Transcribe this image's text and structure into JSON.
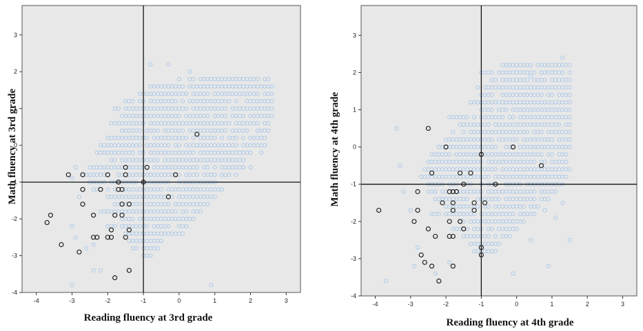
{
  "chart_data": [
    {
      "type": "scatter",
      "title": "",
      "xlabel": "Reading fluency at 3rd grade",
      "ylabel": "Math fluency at 3rd grade",
      "xlim": [
        -4.4,
        3.4
      ],
      "ylim": [
        -4,
        3.8
      ],
      "xticks": [
        -4,
        -3,
        -2,
        -1,
        0,
        1,
        2,
        3
      ],
      "yticks": [
        -4,
        -3,
        -2,
        -1,
        0,
        1,
        2,
        3
      ],
      "reference_lines": {
        "x": -1,
        "y": -1
      },
      "plot_background": "#e8e8e8",
      "grid": false,
      "legend": "none",
      "series": [
        {
          "marker_color": "#a9c7e8",
          "marker": "open-circle",
          "cloud_rows": [
            {
              "y": 1.8,
              "x_from": 0.3,
              "x_to": 2.5
            },
            {
              "y": 1.6,
              "x_from": -0.8,
              "x_to": 2.6
            },
            {
              "y": 1.4,
              "x_from": -1.1,
              "x_to": 2.6
            },
            {
              "y": 1.2,
              "x_from": -1.5,
              "x_to": 2.6
            },
            {
              "y": 1.0,
              "x_from": -1.8,
              "x_to": 2.6
            },
            {
              "y": 0.8,
              "x_from": -1.6,
              "x_to": 2.6
            },
            {
              "y": 0.6,
              "x_from": -1.9,
              "x_to": 2.5
            },
            {
              "y": 0.4,
              "x_from": -1.6,
              "x_to": 2.5
            },
            {
              "y": 0.2,
              "x_from": -2.0,
              "x_to": 2.4
            },
            {
              "y": 0.0,
              "x_from": -2.2,
              "x_to": 2.4
            },
            {
              "y": -0.2,
              "x_from": -2.3,
              "x_to": 2.0
            },
            {
              "y": -0.4,
              "x_from": -2.0,
              "x_to": 1.8
            },
            {
              "y": -0.6,
              "x_from": -2.5,
              "x_to": 1.8
            },
            {
              "y": -0.8,
              "x_from": -2.7,
              "x_to": 1.6
            },
            {
              "y": -1.0,
              "x_from": -2.5,
              "x_to": 1.0
            },
            {
              "y": -1.2,
              "x_from": -2.4,
              "x_to": 1.2
            },
            {
              "y": -1.4,
              "x_from": -2.0,
              "x_to": 1.0
            },
            {
              "y": -1.6,
              "x_from": -1.8,
              "x_to": 0.8
            },
            {
              "y": -1.8,
              "x_from": -2.2,
              "x_to": 0.6
            },
            {
              "y": -2.0,
              "x_from": -1.6,
              "x_to": 0.4
            },
            {
              "y": -2.2,
              "x_from": -2.0,
              "x_to": 0.2
            },
            {
              "y": -2.4,
              "x_from": -1.5,
              "x_to": 0.1
            },
            {
              "y": -2.6,
              "x_from": -1.4,
              "x_to": -0.5
            },
            {
              "y": -2.8,
              "x_from": -1.3,
              "x_to": -0.6
            },
            {
              "y": -3.0,
              "x_from": -1.0,
              "x_to": -0.8
            }
          ],
          "scattered_points": [
            [
              -2.9,
              -0.6
            ],
            [
              -3.0,
              -0.9
            ],
            [
              -2.8,
              -1.4
            ],
            [
              -3.0,
              -2.2
            ],
            [
              -2.9,
              -2.5
            ],
            [
              -3.0,
              -3.8
            ],
            [
              -2.4,
              -3.4
            ],
            [
              -2.6,
              -2.8
            ],
            [
              -2.2,
              -3.4
            ],
            [
              -2.4,
              -2.7
            ],
            [
              0.9,
              -3.8
            ],
            [
              1.5,
              -0.6
            ],
            [
              1.8,
              -0.6
            ],
            [
              2.0,
              -0.6
            ],
            [
              2.3,
              -0.2
            ],
            [
              -0.8,
              2.2
            ],
            [
              -0.3,
              2.2
            ],
            [
              0.0,
              1.8
            ],
            [
              0.3,
              2.0
            ]
          ]
        },
        {
          "marker_color": "#222222",
          "marker": "open-circle",
          "points": [
            [
              -3.7,
              -2.1
            ],
            [
              -3.6,
              -1.9
            ],
            [
              -3.3,
              -2.7
            ],
            [
              -3.1,
              -0.8
            ],
            [
              -2.7,
              -0.8
            ],
            [
              -2.7,
              -1.2
            ],
            [
              -2.7,
              -1.6
            ],
            [
              -2.8,
              -2.9
            ],
            [
              -2.4,
              -1.9
            ],
            [
              -2.4,
              -2.5
            ],
            [
              -2.3,
              -2.5
            ],
            [
              -2.2,
              -1.2
            ],
            [
              -2.0,
              -0.8
            ],
            [
              -2.0,
              -2.5
            ],
            [
              -1.9,
              -2.5
            ],
            [
              -1.9,
              -2.3
            ],
            [
              -1.8,
              -1.9
            ],
            [
              -1.8,
              -3.6
            ],
            [
              -1.7,
              -1.0
            ],
            [
              -1.7,
              -1.2
            ],
            [
              -1.6,
              -1.2
            ],
            [
              -1.6,
              -1.6
            ],
            [
              -1.6,
              -1.9
            ],
            [
              -1.5,
              -0.6
            ],
            [
              -1.5,
              -0.8
            ],
            [
              -1.5,
              -2.5
            ],
            [
              -1.4,
              -2.3
            ],
            [
              -1.4,
              -1.6
            ],
            [
              -1.4,
              -3.4
            ],
            [
              -1.0,
              -1.0
            ],
            [
              -0.9,
              -0.6
            ],
            [
              -0.3,
              -1.4
            ],
            [
              -0.1,
              -0.8
            ],
            [
              0.5,
              0.3
            ]
          ]
        }
      ]
    },
    {
      "type": "scatter",
      "title": "",
      "xlabel": "Reading fluency at 4th grade",
      "ylabel": "Math fluency at 4th grade",
      "xlim": [
        -4.4,
        3.4
      ],
      "ylim": [
        -4,
        3.8
      ],
      "xticks": [
        -4,
        -3,
        -2,
        -1,
        0,
        1,
        2,
        3
      ],
      "yticks": [
        -4,
        -3,
        -2,
        -1,
        0,
        1,
        2,
        3
      ],
      "reference_lines": {
        "x": -1,
        "y": -1
      },
      "plot_background": "#e8e8e8",
      "grid": false,
      "legend": "none",
      "series": [
        {
          "marker_color": "#a9c7e8",
          "marker": "open-circle",
          "cloud_rows": [
            {
              "y": 2.2,
              "x_from": -0.4,
              "x_to": 1.5
            },
            {
              "y": 2.0,
              "x_from": -1.0,
              "x_to": 1.5
            },
            {
              "y": 1.8,
              "x_from": -0.8,
              "x_to": 1.5
            },
            {
              "y": 1.6,
              "x_from": -1.1,
              "x_to": 1.5
            },
            {
              "y": 1.4,
              "x_from": -1.0,
              "x_to": 1.5
            },
            {
              "y": 1.2,
              "x_from": -1.3,
              "x_to": 1.5
            },
            {
              "y": 1.0,
              "x_from": -1.0,
              "x_to": 1.5
            },
            {
              "y": 0.8,
              "x_from": -1.9,
              "x_to": 1.5
            },
            {
              "y": 0.6,
              "x_from": -1.6,
              "x_to": 1.5
            },
            {
              "y": 0.4,
              "x_from": -1.8,
              "x_to": 1.5
            },
            {
              "y": 0.2,
              "x_from": -2.0,
              "x_to": 1.5
            },
            {
              "y": 0.0,
              "x_from": -2.2,
              "x_to": 1.5
            },
            {
              "y": -0.2,
              "x_from": -2.4,
              "x_to": 1.5
            },
            {
              "y": -0.4,
              "x_from": -2.5,
              "x_to": 1.5
            },
            {
              "y": -0.6,
              "x_from": -2.6,
              "x_to": 1.5
            },
            {
              "y": -0.8,
              "x_from": -2.7,
              "x_to": 1.4
            },
            {
              "y": -1.0,
              "x_from": -2.5,
              "x_to": 1.3
            },
            {
              "y": -1.2,
              "x_from": -2.5,
              "x_to": 1.1
            },
            {
              "y": -1.4,
              "x_from": -2.3,
              "x_to": 0.9
            },
            {
              "y": -1.6,
              "x_from": -2.0,
              "x_to": 0.6
            },
            {
              "y": -1.8,
              "x_from": -2.4,
              "x_to": 0.5
            },
            {
              "y": -2.0,
              "x_from": -1.6,
              "x_to": 0.2
            },
            {
              "y": -2.2,
              "x_from": -1.8,
              "x_to": 0.0
            },
            {
              "y": -2.4,
              "x_from": -1.5,
              "x_to": -0.2
            },
            {
              "y": -2.6,
              "x_from": -1.4,
              "x_to": -0.4
            },
            {
              "y": -2.8,
              "x_from": -1.2,
              "x_to": -0.6
            }
          ],
          "scattered_points": [
            [
              -3.4,
              0.5
            ],
            [
              -3.3,
              -0.5
            ],
            [
              -3.2,
              -1.2
            ],
            [
              -3.0,
              -1.7
            ],
            [
              -2.8,
              -2.7
            ],
            [
              -2.9,
              -3.2
            ],
            [
              -3.7,
              -3.6
            ],
            [
              -2.3,
              -3.4
            ],
            [
              -1.9,
              -3.1
            ],
            [
              0.9,
              -3.2
            ],
            [
              -0.1,
              -3.4
            ],
            [
              0.4,
              -2.5
            ],
            [
              1.5,
              -2.5
            ],
            [
              1.1,
              -1.9
            ],
            [
              1.3,
              -1.5
            ],
            [
              0.8,
              -1.7
            ],
            [
              1.3,
              2.4
            ],
            [
              -0.2,
              2.2
            ],
            [
              0.4,
              1.9
            ]
          ]
        },
        {
          "marker_color": "#222222",
          "marker": "open-circle",
          "points": [
            [
              -3.9,
              -1.7
            ],
            [
              -2.9,
              -2.0
            ],
            [
              -2.8,
              -1.2
            ],
            [
              -2.8,
              -1.7
            ],
            [
              -2.7,
              -2.9
            ],
            [
              -2.6,
              -3.1
            ],
            [
              -2.5,
              0.5
            ],
            [
              -2.4,
              -0.7
            ],
            [
              -2.4,
              -3.2
            ],
            [
              -2.5,
              -2.2
            ],
            [
              -2.3,
              -2.4
            ],
            [
              -2.2,
              -3.6
            ],
            [
              -2.1,
              -1.5
            ],
            [
              -2.0,
              0.0
            ],
            [
              -1.9,
              -1.2
            ],
            [
              -1.9,
              -2.0
            ],
            [
              -1.9,
              -2.4
            ],
            [
              -1.8,
              -1.2
            ],
            [
              -1.8,
              -1.5
            ],
            [
              -1.8,
              -1.7
            ],
            [
              -1.8,
              -2.4
            ],
            [
              -1.8,
              -3.2
            ],
            [
              -1.7,
              -1.2
            ],
            [
              -1.6,
              -0.7
            ],
            [
              -1.6,
              -2.0
            ],
            [
              -1.5,
              -2.2
            ],
            [
              -1.5,
              -1.0
            ],
            [
              -1.3,
              -0.7
            ],
            [
              -1.2,
              -1.5
            ],
            [
              -1.2,
              -1.7
            ],
            [
              -1.0,
              -0.2
            ],
            [
              -1.0,
              -2.7
            ],
            [
              -1.0,
              -2.9
            ],
            [
              -0.9,
              -1.5
            ],
            [
              -0.6,
              -1.0
            ],
            [
              -0.1,
              0.0
            ],
            [
              0.7,
              -0.5
            ]
          ]
        }
      ]
    }
  ]
}
